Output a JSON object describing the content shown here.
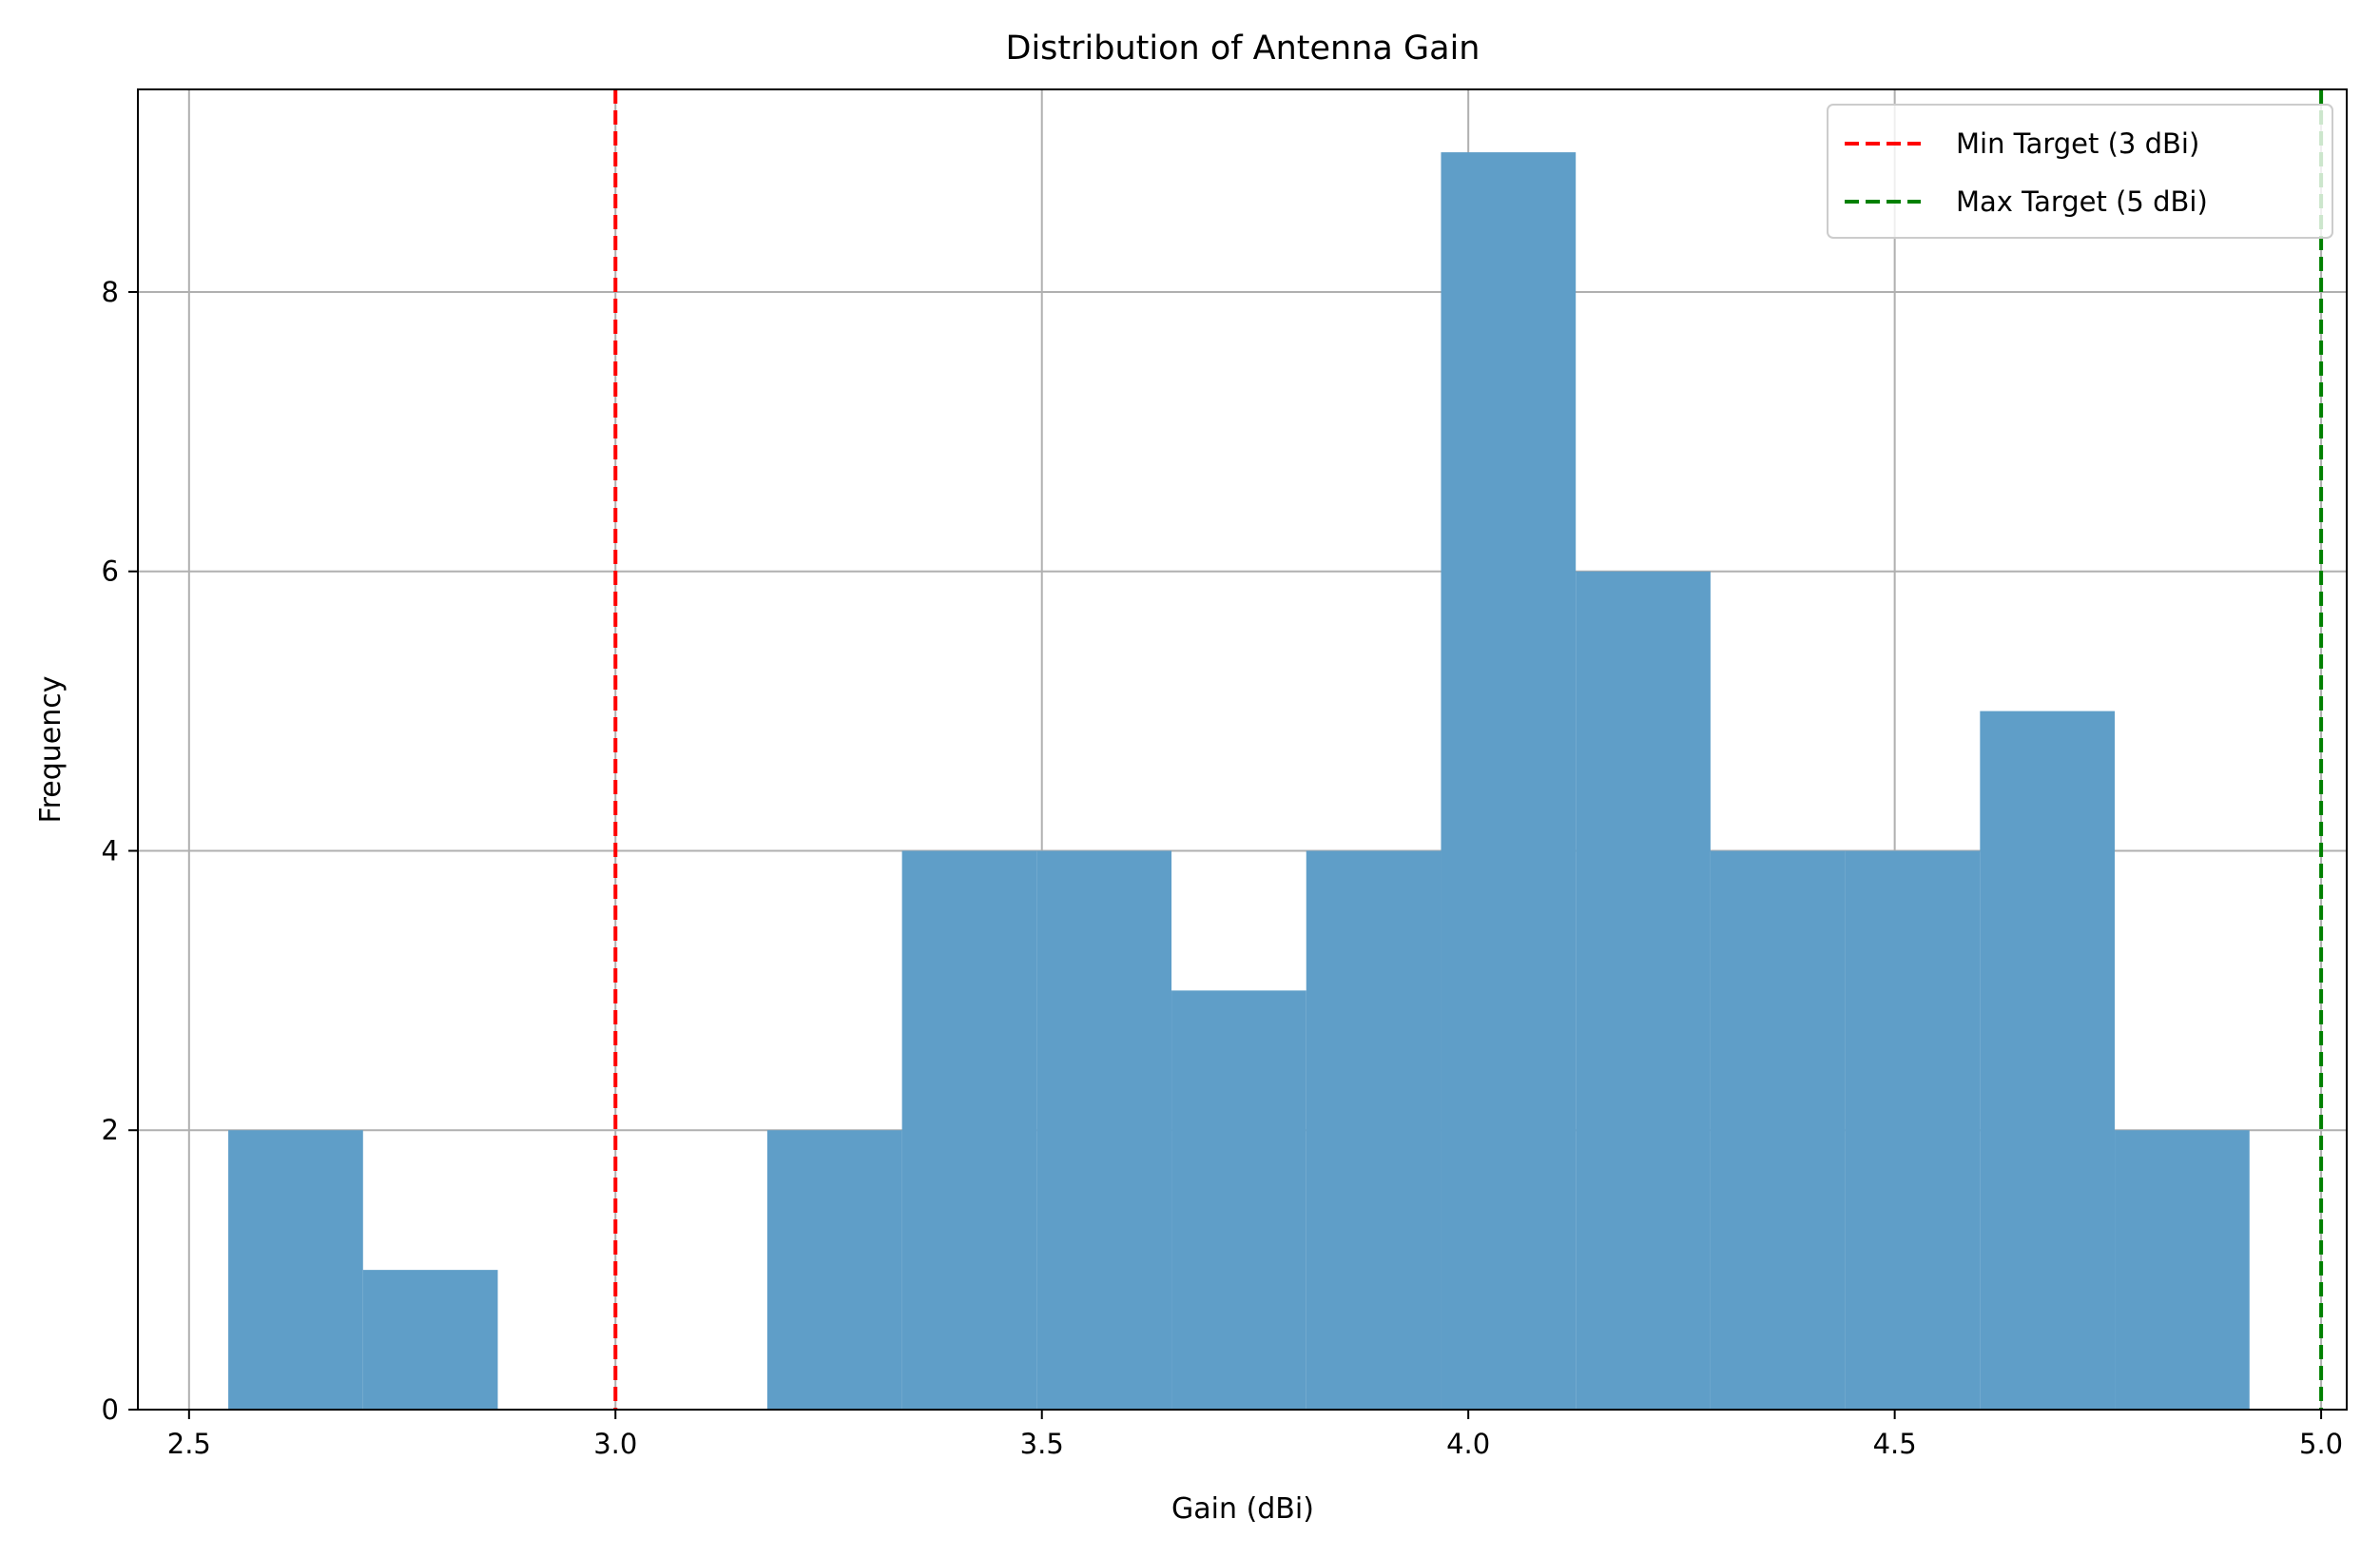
{
  "chart_data": {
    "type": "bar",
    "title": "Distribution of Antenna Gain",
    "xlabel": "Gain (dBi)",
    "ylabel": "Frequency",
    "xlim": [
      2.44,
      5.03
    ],
    "ylim": [
      0,
      9.45
    ],
    "grid": true,
    "legend_position": "top-right",
    "x_ticks": [
      {
        "value": 2.5,
        "label": "2.5"
      },
      {
        "value": 3.0,
        "label": "3.0"
      },
      {
        "value": 3.5,
        "label": "3.5"
      },
      {
        "value": 4.0,
        "label": "4.0"
      },
      {
        "value": 4.5,
        "label": "4.5"
      },
      {
        "value": 5.0,
        "label": "5.0"
      }
    ],
    "y_ticks": [
      {
        "value": 0,
        "label": "0"
      },
      {
        "value": 2,
        "label": "2"
      },
      {
        "value": 4,
        "label": "4"
      },
      {
        "value": 6,
        "label": "6"
      },
      {
        "value": 8,
        "label": "8"
      }
    ],
    "bar_color": "#5f9ec8",
    "bins": [
      {
        "x0": 2.546,
        "x1": 2.704,
        "count": 2
      },
      {
        "x0": 2.704,
        "x1": 2.862,
        "count": 1
      },
      {
        "x0": 2.862,
        "x1": 3.02,
        "count": 0
      },
      {
        "x0": 3.02,
        "x1": 3.178,
        "count": 0
      },
      {
        "x0": 3.178,
        "x1": 3.336,
        "count": 2
      },
      {
        "x0": 3.336,
        "x1": 3.494,
        "count": 4
      },
      {
        "x0": 3.494,
        "x1": 3.652,
        "count": 4
      },
      {
        "x0": 3.652,
        "x1": 3.81,
        "count": 3
      },
      {
        "x0": 3.81,
        "x1": 3.968,
        "count": 4
      },
      {
        "x0": 3.968,
        "x1": 4.126,
        "count": 9
      },
      {
        "x0": 4.126,
        "x1": 4.284,
        "count": 6
      },
      {
        "x0": 4.284,
        "x1": 4.442,
        "count": 4
      },
      {
        "x0": 4.442,
        "x1": 4.6,
        "count": 4
      },
      {
        "x0": 4.6,
        "x1": 4.758,
        "count": 5
      },
      {
        "x0": 4.758,
        "x1": 4.916,
        "count": 2
      }
    ],
    "reference_lines": [
      {
        "name": "Min Target (3 dBi)",
        "x": 3.0,
        "color": "#ff0000",
        "style": "dashed"
      },
      {
        "name": "Max Target (5 dBi)",
        "x": 5.0,
        "color": "#008000",
        "style": "dashed"
      }
    ]
  }
}
